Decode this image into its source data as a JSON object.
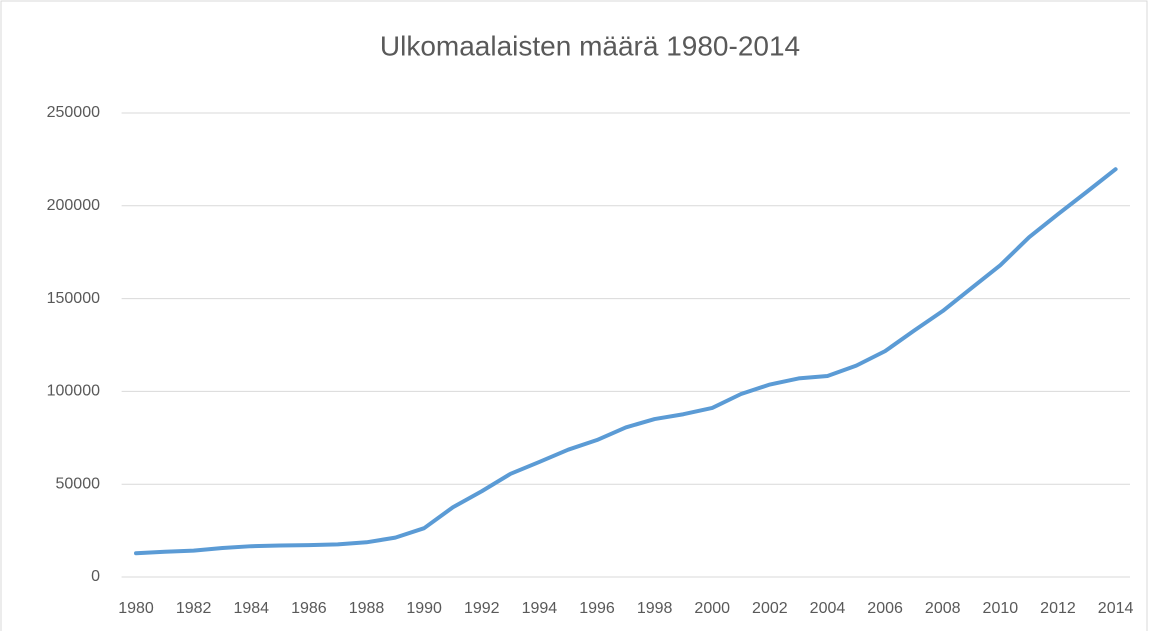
{
  "chart_data": {
    "type": "line",
    "title": "Ulkomaalaisten määrä 1980-2014",
    "categories": [
      "1980",
      null,
      "1982",
      null,
      "1984",
      null,
      "1986",
      null,
      "1988",
      null,
      "1990",
      null,
      "1992",
      null,
      "1994",
      null,
      "1996",
      null,
      "1998",
      null,
      "2000",
      null,
      "2002",
      null,
      "2004",
      null,
      "2006",
      null,
      "2008",
      null,
      "2010",
      null,
      "2012",
      null,
      "2014"
    ],
    "values": [
      12800,
      13600,
      14200,
      15600,
      16600,
      17000,
      17200,
      17600,
      18700,
      21200,
      26300,
      37600,
      46200,
      55600,
      62000,
      68600,
      73800,
      80600,
      85100,
      87700,
      91100,
      98600,
      103700,
      107000,
      108300,
      113900,
      121700,
      132700,
      143300,
      155700,
      168000,
      183100,
      195500,
      207500,
      219700
    ],
    "color": "#5b9bd5",
    "ylim": [
      0,
      250000
    ],
    "yticks": [
      0,
      50000,
      100000,
      150000,
      200000,
      250000
    ],
    "grid": true
  }
}
